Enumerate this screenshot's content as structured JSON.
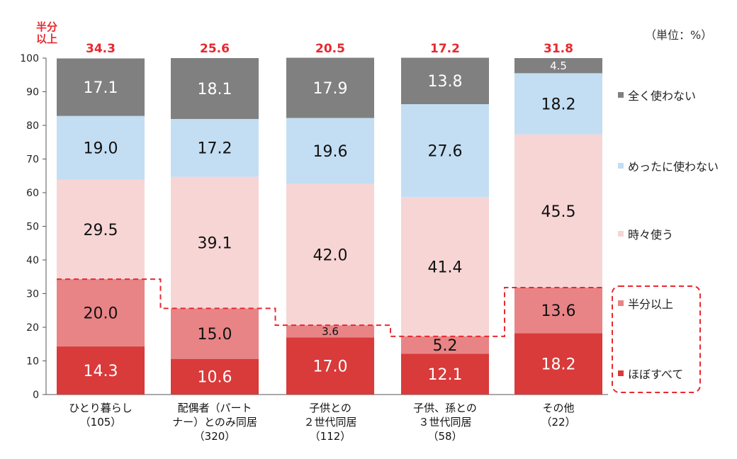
{
  "unit_label": "（単位：%）",
  "half_or_more_label_line1": "半分",
  "half_or_more_label_line2": "以上",
  "chart_data": {
    "type": "stacked_bar",
    "ylim": [
      0,
      100
    ],
    "yticks": [
      "0",
      "10",
      "20",
      "30",
      "40",
      "50",
      "60",
      "70",
      "80",
      "90",
      "100"
    ],
    "categories": [
      {
        "line1": "ひとり暮らし",
        "line2": "",
        "n": "（105）"
      },
      {
        "line1": "配偶者（パート",
        "line2": "ナー）とのみ同居",
        "n": "（320）"
      },
      {
        "line1": "子供との",
        "line2": "２世代同居",
        "n": "（112）"
      },
      {
        "line1": "子供、孫との",
        "line2": "３世代同居",
        "n": "（58）"
      },
      {
        "line1": "その他",
        "line2": "",
        "n": "（22）"
      }
    ],
    "series": [
      {
        "name": "ほぼすべて",
        "color": "#d93a3a",
        "text_color": "#ffffff",
        "values": [
          14.3,
          10.6,
          17.0,
          12.1,
          18.2
        ]
      },
      {
        "name": "半分以上",
        "color": "#e88486",
        "text_color": "#111111",
        "values": [
          20.0,
          15.0,
          3.6,
          5.2,
          13.6
        ]
      },
      {
        "name": "時々使う",
        "color": "#f7d5d5",
        "text_color": "#111111",
        "values": [
          29.5,
          39.1,
          42.0,
          41.4,
          45.5
        ]
      },
      {
        "name": "めったに使わない",
        "color": "#c3def3",
        "text_color": "#111111",
        "values": [
          19.0,
          17.2,
          19.6,
          27.6,
          18.2
        ]
      },
      {
        "name": "全く使わない",
        "color": "#808080",
        "text_color": "#ffffff",
        "values": [
          17.1,
          18.1,
          17.9,
          13.8,
          4.5
        ]
      }
    ],
    "half_or_more_totals": [
      "34.3",
      "25.6",
      "20.5",
      "17.2",
      "31.8"
    ],
    "accent_color": "#e8282f"
  }
}
